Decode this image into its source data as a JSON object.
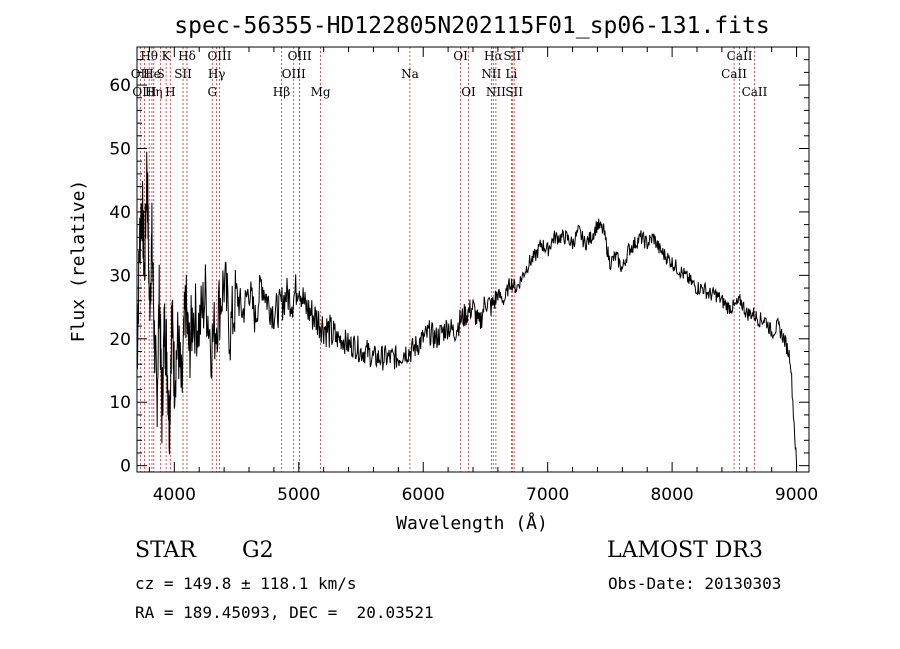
{
  "chart_data": {
    "type": "line",
    "title": "spec-56355-HD122805N202115F01_sp06-131.fits",
    "xlabel": "Wavelength (Å)",
    "ylabel": "Flux (relative)",
    "xlim": [
      3700,
      9100
    ],
    "ylim": [
      -1,
      66
    ],
    "x_ticks": [
      4000,
      5000,
      6000,
      7000,
      8000,
      9000
    ],
    "y_ticks": [
      0,
      10,
      20,
      30,
      40,
      50,
      60
    ],
    "grid": false,
    "series": [
      {
        "line_color": "#000000",
        "x": [
          3700,
          3720,
          3740,
          3760,
          3780,
          3800,
          3820,
          3840,
          3860,
          3880,
          3900,
          3920,
          3940,
          3960,
          3980,
          4000,
          4030,
          4060,
          4090,
          4120,
          4150,
          4200,
          4250,
          4300,
          4350,
          4400,
          4450,
          4500,
          4550,
          4600,
          4650,
          4700,
          4750,
          4800,
          4850,
          4900,
          4950,
          5000,
          5050,
          5100,
          5150,
          5200,
          5250,
          5300,
          5350,
          5400,
          5450,
          5500,
          5550,
          5600,
          5650,
          5700,
          5750,
          5800,
          5850,
          5900,
          5950,
          6000,
          6050,
          6100,
          6150,
          6200,
          6250,
          6300,
          6350,
          6400,
          6450,
          6500,
          6550,
          6600,
          6650,
          6700,
          6750,
          6800,
          6850,
          6900,
          6950,
          7000,
          7050,
          7100,
          7150,
          7200,
          7250,
          7300,
          7350,
          7400,
          7450,
          7500,
          7550,
          7600,
          7650,
          7700,
          7750,
          7800,
          7850,
          7900,
          7950,
          8000,
          8050,
          8100,
          8150,
          8200,
          8250,
          8300,
          8350,
          8400,
          8450,
          8500,
          8550,
          8600,
          8650,
          8700,
          8750,
          8800,
          8850,
          8900,
          8950,
          9000
        ],
        "values": [
          16,
          35,
          42,
          30,
          48,
          25,
          36,
          20,
          10,
          28,
          8,
          22,
          18,
          6,
          24,
          14,
          20,
          11,
          26,
          18,
          24,
          22,
          27,
          19,
          24,
          29,
          21,
          27,
          24,
          28,
          23,
          29,
          26,
          24,
          25,
          27,
          26,
          29,
          25,
          24,
          23,
          22,
          21,
          20,
          20,
          19,
          19,
          18,
          18,
          17,
          17,
          17,
          17,
          17,
          18,
          18,
          19,
          20,
          21,
          20,
          21,
          22,
          21,
          23,
          24,
          25,
          22,
          26,
          25,
          27,
          26,
          29,
          28,
          30,
          32,
          33,
          35,
          34,
          36,
          36,
          36,
          35,
          37,
          35,
          36,
          38,
          37,
          32,
          33,
          31,
          34,
          35,
          36,
          35,
          36,
          34,
          33,
          32,
          31,
          30,
          29,
          28,
          28,
          27,
          27,
          26,
          25,
          25,
          26,
          24,
          24,
          23,
          23,
          21,
          22,
          20,
          17,
          0
        ],
        "ticks_per_interval": 5
      }
    ],
    "spectral_lines": [
      {
        "label": "OII",
        "x": 3727,
        "row": 1
      },
      {
        "label": "OIII",
        "x": 3760,
        "row": 2
      },
      {
        "label": "Hθ",
        "x": 3798,
        "row": 0
      },
      {
        "label": "He",
        "x": 3820,
        "row": 1
      },
      {
        "label": "Hη",
        "x": 3835,
        "row": 2
      },
      {
        "label": "K",
        "x": 3934,
        "row": 0
      },
      {
        "label": "S",
        "x": 3890,
        "row": 1
      },
      {
        "label": "H",
        "x": 3968,
        "row": 2
      },
      {
        "label": "Hδ",
        "x": 4102,
        "row": 0
      },
      {
        "label": "SII",
        "x": 4070,
        "row": 1
      },
      {
        "label": "OIII",
        "x": 4363,
        "row": 0
      },
      {
        "label": "Hγ",
        "x": 4340,
        "row": 1
      },
      {
        "label": "G",
        "x": 4305,
        "row": 2
      },
      {
        "label": "OIII",
        "x": 5007,
        "row": 0
      },
      {
        "label": "OIII",
        "x": 4959,
        "row": 1
      },
      {
        "label": "Hβ",
        "x": 4861,
        "row": 2
      },
      {
        "label": "Mg",
        "x": 5175,
        "row": 2
      },
      {
        "label": "Na",
        "x": 5893,
        "row": 1
      },
      {
        "label": "OI",
        "x": 6300,
        "row": 0
      },
      {
        "label": "OI",
        "x": 6364,
        "row": 2
      },
      {
        "label": "Hα",
        "x": 6563,
        "row": 0
      },
      {
        "label": "SII",
        "x": 6716,
        "row": 0
      },
      {
        "label": "NII",
        "x": 6548,
        "row": 1
      },
      {
        "label": "Li",
        "x": 6708,
        "row": 1
      },
      {
        "label": "NII",
        "x": 6584,
        "row": 2
      },
      {
        "label": "SII",
        "x": 6731,
        "row": 2
      },
      {
        "label": "CaII",
        "x": 8542,
        "row": 0
      },
      {
        "label": "CaII",
        "x": 8498,
        "row": 1
      },
      {
        "label": "CaII",
        "x": 8662,
        "row": 2
      }
    ],
    "line_marker_color": "#c03030"
  },
  "info": {
    "object_class": "STAR",
    "subclass": "G2",
    "survey": "LAMOST DR3",
    "cz": "cz = 149.8 ± 118.1 km/s",
    "obs_date": "Obs-Date: 20130303",
    "coords": "RA = 189.45093, DEC =  20.03521"
  }
}
